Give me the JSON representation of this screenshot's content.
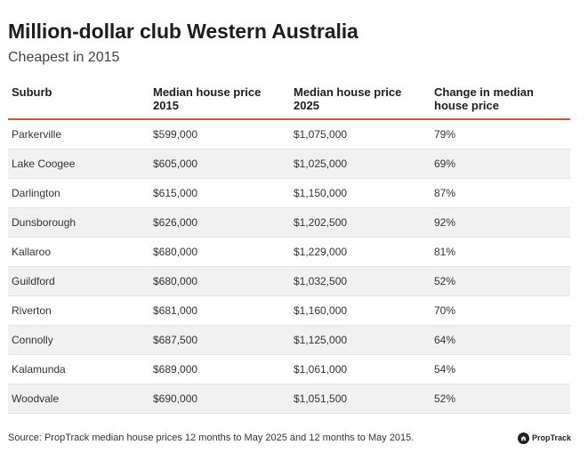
{
  "title": "Million-dollar club Western Australia",
  "subtitle": "Cheapest in 2015",
  "table": {
    "headers": [
      "Suburb",
      "Median house price 2015",
      "Median house price 2025",
      "Change in median house price"
    ],
    "rows": [
      [
        "Parkerville",
        "$599,000",
        "$1,075,000",
        "79%"
      ],
      [
        "Lake Coogee",
        "$605,000",
        "$1,025,000",
        "69%"
      ],
      [
        "Darlington",
        "$615,000",
        "$1,150,000",
        "87%"
      ],
      [
        "Dunsborough",
        "$626,000",
        "$1,202,500",
        "92%"
      ],
      [
        "Kallaroo",
        "$680,000",
        "$1,229,000",
        "81%"
      ],
      [
        "Guildford",
        "$680,000",
        "$1,032,500",
        "52%"
      ],
      [
        "Riverton",
        "$681,000",
        "$1,160,000",
        "70%"
      ],
      [
        "Connolly",
        "$687,500",
        "$1,125,000",
        "64%"
      ],
      [
        "Kalamunda",
        "$689,000",
        "$1,061,000",
        "54%"
      ],
      [
        "Woodvale",
        "$690,000",
        "$1,051,500",
        "52%"
      ]
    ]
  },
  "source": "Source: PropTrack median house prices 12 months to May 2025 and 12 months to May 2015.",
  "brand": {
    "name": "PropTrack",
    "icon": "proptrack-house-logo-icon"
  },
  "colors": {
    "header_rule": "#d2553a",
    "row_stripe": "#f1f1f1",
    "text": "#333333"
  },
  "chart_data": {
    "type": "table",
    "title": "Million-dollar club Western Australia",
    "subtitle": "Cheapest in 2015",
    "columns": [
      "Suburb",
      "Median house price 2015",
      "Median house price 2025",
      "Change in median house price"
    ],
    "categories": [
      "Parkerville",
      "Lake Coogee",
      "Darlington",
      "Dunsborough",
      "Kallaroo",
      "Guildford",
      "Riverton",
      "Connolly",
      "Kalamunda",
      "Woodvale"
    ],
    "series": [
      {
        "name": "Median house price 2015",
        "values": [
          599000,
          605000,
          615000,
          626000,
          680000,
          680000,
          681000,
          687500,
          689000,
          690000
        ]
      },
      {
        "name": "Median house price 2025",
        "values": [
          1075000,
          1025000,
          1150000,
          1202500,
          1229000,
          1032500,
          1160000,
          1125000,
          1061000,
          1051500
        ]
      },
      {
        "name": "Change in median house price",
        "values": [
          79,
          69,
          87,
          92,
          81,
          52,
          70,
          64,
          54,
          52
        ]
      }
    ]
  }
}
